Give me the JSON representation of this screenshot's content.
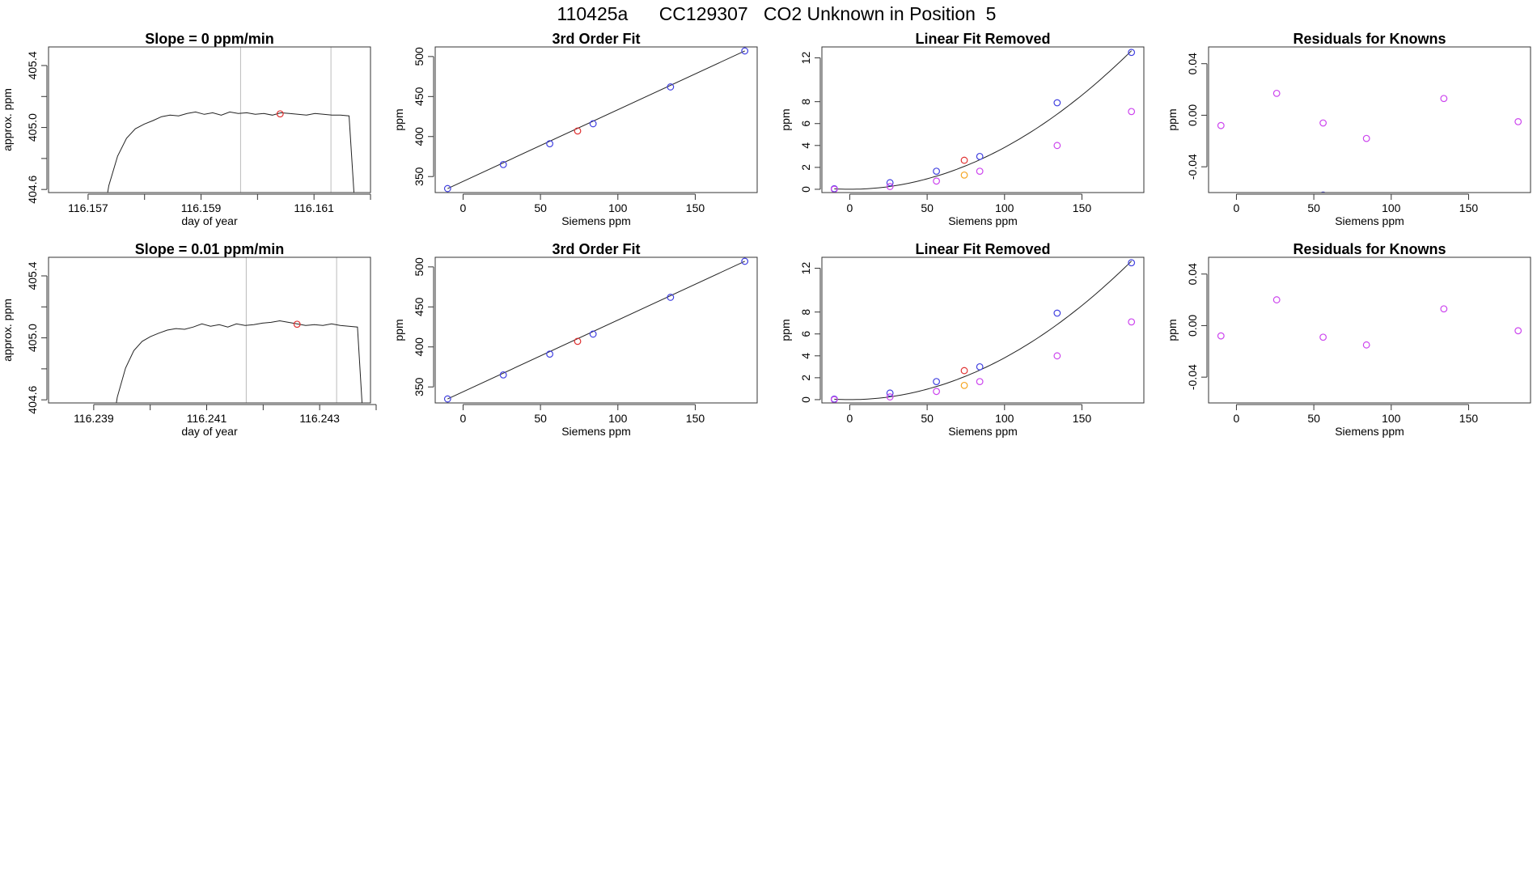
{
  "figure_title": "110425a      CC129307   CO2 Unknown in Position  5",
  "chart_data": [
    {
      "id": "ts1",
      "type": "line",
      "title": "Slope =  0  ppm/min",
      "xlabel": "day of year",
      "ylabel": "approx. ppm",
      "xlim": [
        116.1563,
        116.162
      ],
      "ylim": [
        404.58,
        405.52
      ],
      "xticks": [
        116.157,
        116.158,
        116.159,
        116.16,
        116.161,
        116.162
      ],
      "xtick_labels": [
        "116.157",
        "",
        "116.159",
        "",
        "116.161",
        ""
      ],
      "yticks": [
        404.6,
        404.8,
        405.0,
        405.2,
        405.4
      ],
      "ytick_labels": [
        "404.6",
        "",
        "405.0",
        "",
        "405.4"
      ],
      "vlines": [
        116.1597,
        116.1613
      ],
      "marker": {
        "x": 116.1604,
        "y": 405.088,
        "color": "#e03030"
      },
      "trace": {
        "start": 116.15721,
        "rise_end": 116.15815,
        "drop_start": 116.16162,
        "end": 116.16176,
        "plateau": [
          405.045,
          405.07,
          405.08,
          405.075,
          405.09,
          405.1,
          405.085,
          405.095,
          405.08,
          405.1,
          405.09,
          405.095,
          405.085,
          405.09,
          405.08,
          405.095,
          405.09,
          405.085,
          405.08,
          405.09,
          405.085,
          405.08,
          405.08,
          405.075
        ]
      }
    },
    {
      "id": "fit1",
      "type": "scatter",
      "title": "3rd Order Fit",
      "xlabel": "Siemens ppm",
      "ylabel": "ppm",
      "xlim": [
        -18,
        190
      ],
      "ylim": [
        330,
        512
      ],
      "xticks": [
        0,
        50,
        100,
        150
      ],
      "xtick_labels": [
        "0",
        "50",
        "100",
        "150"
      ],
      "yticks": [
        350,
        400,
        450,
        500
      ],
      "ytick_labels": [
        "350",
        "400",
        "450",
        "500"
      ],
      "line": [
        [
          -10,
          335
        ],
        [
          182,
          507
        ]
      ],
      "points": [
        {
          "x": -10,
          "y": 335,
          "color": "#4040e0"
        },
        {
          "x": 26,
          "y": 365,
          "color": "#4040e0"
        },
        {
          "x": 56,
          "y": 391,
          "color": "#4040e0"
        },
        {
          "x": 74,
          "y": 407,
          "color": "#e03030"
        },
        {
          "x": 84,
          "y": 416,
          "color": "#4040e0"
        },
        {
          "x": 134,
          "y": 462,
          "color": "#4040e0"
        },
        {
          "x": 182,
          "y": 507,
          "color": "#4040e0"
        }
      ]
    },
    {
      "id": "lin1",
      "type": "scatter",
      "title": "Linear Fit Removed",
      "xlabel": "Siemens ppm",
      "ylabel": "ppm",
      "xlim": [
        -18,
        190
      ],
      "ylim": [
        -0.3,
        13.0
      ],
      "xticks": [
        0,
        50,
        100,
        150
      ],
      "xtick_labels": [
        "0",
        "50",
        "100",
        "150"
      ],
      "yticks": [
        0,
        2,
        4,
        6,
        8,
        12
      ],
      "ytick_labels": [
        "0",
        "2",
        "4",
        "6",
        "8",
        "12"
      ],
      "curve": {
        "x0": -10,
        "x1": 182,
        "vertex": 0,
        "k": 0.000382
      },
      "points": [
        {
          "x": -10,
          "y": 0.05,
          "color": "#4040e0"
        },
        {
          "x": 26,
          "y": 0.6,
          "color": "#4040e0"
        },
        {
          "x": 56,
          "y": 1.65,
          "color": "#4040e0"
        },
        {
          "x": 84,
          "y": 3.0,
          "color": "#4040e0"
        },
        {
          "x": 134,
          "y": 7.9,
          "color": "#4040e0"
        },
        {
          "x": 182,
          "y": 12.5,
          "color": "#4040e0"
        },
        {
          "x": 74,
          "y": 2.65,
          "color": "#e03030"
        },
        {
          "x": -10,
          "y": 0.0,
          "color": "#cc44ee"
        },
        {
          "x": 26,
          "y": 0.25,
          "color": "#cc44ee"
        },
        {
          "x": 56,
          "y": 0.75,
          "color": "#cc44ee"
        },
        {
          "x": 84,
          "y": 1.65,
          "color": "#cc44ee"
        },
        {
          "x": 134,
          "y": 4.0,
          "color": "#cc44ee"
        },
        {
          "x": 182,
          "y": 7.1,
          "color": "#cc44ee"
        },
        {
          "x": 74,
          "y": 1.3,
          "color": "#f5a623"
        }
      ]
    },
    {
      "id": "res1",
      "type": "scatter",
      "title": "Residuals for Knowns",
      "xlabel": "Siemens ppm",
      "ylabel": "ppm",
      "xlim": [
        -18,
        190
      ],
      "ylim": [
        -0.06,
        0.053
      ],
      "xticks": [
        0,
        50,
        100,
        150
      ],
      "xtick_labels": [
        "0",
        "50",
        "100",
        "150"
      ],
      "yticks": [
        -0.04,
        0.0,
        0.04
      ],
      "ytick_labels": [
        "-0.04",
        "0.00",
        "0.04"
      ],
      "points": [
        {
          "x": -10,
          "y": -0.008,
          "color": "#cc44ee"
        },
        {
          "x": 26,
          "y": 0.017,
          "color": "#cc44ee"
        },
        {
          "x": 56,
          "y": -0.006,
          "color": "#cc44ee"
        },
        {
          "x": 84,
          "y": -0.018,
          "color": "#cc44ee"
        },
        {
          "x": 134,
          "y": 0.013,
          "color": "#cc44ee"
        },
        {
          "x": 182,
          "y": -0.005,
          "color": "#cc44ee"
        },
        {
          "x": 56,
          "y": -0.062,
          "color": "#4040e0"
        }
      ]
    },
    {
      "id": "ts2",
      "type": "line",
      "title": "Slope =  0.01  ppm/min",
      "xlabel": "day of year",
      "ylabel": "approx. ppm",
      "xlim": [
        116.2382,
        116.2439
      ],
      "ylim": [
        404.58,
        405.52
      ],
      "xticks": [
        116.239,
        116.24,
        116.241,
        116.242,
        116.243,
        116.244
      ],
      "xtick_labels": [
        "116.239",
        "",
        "116.241",
        "",
        "116.243",
        ""
      ],
      "yticks": [
        404.6,
        404.8,
        405.0,
        405.2,
        405.4
      ],
      "ytick_labels": [
        "404.6",
        "",
        "405.0",
        "",
        "405.4"
      ],
      "vlines": [
        116.2417,
        116.2433
      ],
      "marker": {
        "x": 116.2426,
        "y": 405.088,
        "color": "#e03030"
      },
      "trace": {
        "start": 116.23927,
        "rise_end": 116.24015,
        "drop_start": 116.24367,
        "end": 116.2438,
        "plateau": [
          405.03,
          405.05,
          405.06,
          405.055,
          405.07,
          405.09,
          405.075,
          405.085,
          405.07,
          405.09,
          405.08,
          405.085,
          405.095,
          405.1,
          405.11,
          405.1,
          405.09,
          405.08,
          405.085,
          405.08,
          405.09,
          405.08,
          405.075,
          405.07
        ]
      }
    },
    {
      "id": "fit2",
      "type": "scatter",
      "title": "3rd Order Fit",
      "xlabel": "Siemens ppm",
      "ylabel": "ppm",
      "xlim": [
        -18,
        190
      ],
      "ylim": [
        330,
        512
      ],
      "xticks": [
        0,
        50,
        100,
        150
      ],
      "xtick_labels": [
        "0",
        "50",
        "100",
        "150"
      ],
      "yticks": [
        350,
        400,
        450,
        500
      ],
      "ytick_labels": [
        "350",
        "400",
        "450",
        "500"
      ],
      "line": [
        [
          -10,
          335
        ],
        [
          182,
          507
        ]
      ],
      "points": [
        {
          "x": -10,
          "y": 335,
          "color": "#4040e0"
        },
        {
          "x": 26,
          "y": 365,
          "color": "#4040e0"
        },
        {
          "x": 56,
          "y": 391,
          "color": "#4040e0"
        },
        {
          "x": 74,
          "y": 407,
          "color": "#e03030"
        },
        {
          "x": 84,
          "y": 416,
          "color": "#4040e0"
        },
        {
          "x": 134,
          "y": 462,
          "color": "#4040e0"
        },
        {
          "x": 182,
          "y": 507,
          "color": "#4040e0"
        }
      ]
    },
    {
      "id": "lin2",
      "type": "scatter",
      "title": "Linear Fit Removed",
      "xlabel": "Siemens ppm",
      "ylabel": "ppm",
      "xlim": [
        -18,
        190
      ],
      "ylim": [
        -0.3,
        13.0
      ],
      "xticks": [
        0,
        50,
        100,
        150
      ],
      "xtick_labels": [
        "0",
        "50",
        "100",
        "150"
      ],
      "yticks": [
        0,
        2,
        4,
        6,
        8,
        12
      ],
      "ytick_labels": [
        "0",
        "2",
        "4",
        "6",
        "8",
        "12"
      ],
      "curve": {
        "x0": -10,
        "x1": 182,
        "vertex": 0,
        "k": 0.000382
      },
      "points": [
        {
          "x": -10,
          "y": 0.05,
          "color": "#4040e0"
        },
        {
          "x": 26,
          "y": 0.6,
          "color": "#4040e0"
        },
        {
          "x": 56,
          "y": 1.65,
          "color": "#4040e0"
        },
        {
          "x": 84,
          "y": 3.0,
          "color": "#4040e0"
        },
        {
          "x": 134,
          "y": 7.9,
          "color": "#4040e0"
        },
        {
          "x": 182,
          "y": 12.5,
          "color": "#4040e0"
        },
        {
          "x": 74,
          "y": 2.65,
          "color": "#e03030"
        },
        {
          "x": -10,
          "y": 0.0,
          "color": "#cc44ee"
        },
        {
          "x": 26,
          "y": 0.25,
          "color": "#cc44ee"
        },
        {
          "x": 56,
          "y": 0.75,
          "color": "#cc44ee"
        },
        {
          "x": 84,
          "y": 1.65,
          "color": "#cc44ee"
        },
        {
          "x": 134,
          "y": 4.0,
          "color": "#cc44ee"
        },
        {
          "x": 182,
          "y": 7.1,
          "color": "#cc44ee"
        },
        {
          "x": 74,
          "y": 1.3,
          "color": "#f5a623"
        }
      ]
    },
    {
      "id": "res2",
      "type": "scatter",
      "title": "Residuals for Knowns",
      "xlabel": "Siemens ppm",
      "ylabel": "ppm",
      "xlim": [
        -18,
        190
      ],
      "ylim": [
        -0.06,
        0.053
      ],
      "xticks": [
        0,
        50,
        100,
        150
      ],
      "xtick_labels": [
        "0",
        "50",
        "100",
        "150"
      ],
      "yticks": [
        -0.04,
        0.0,
        0.04
      ],
      "ytick_labels": [
        "-0.04",
        "0.00",
        "0.04"
      ],
      "points": [
        {
          "x": -10,
          "y": -0.008,
          "color": "#cc44ee"
        },
        {
          "x": 26,
          "y": 0.02,
          "color": "#cc44ee"
        },
        {
          "x": 56,
          "y": -0.009,
          "color": "#cc44ee"
        },
        {
          "x": 84,
          "y": -0.015,
          "color": "#cc44ee"
        },
        {
          "x": 134,
          "y": 0.013,
          "color": "#cc44ee"
        },
        {
          "x": 182,
          "y": -0.004,
          "color": "#cc44ee"
        }
      ]
    }
  ]
}
